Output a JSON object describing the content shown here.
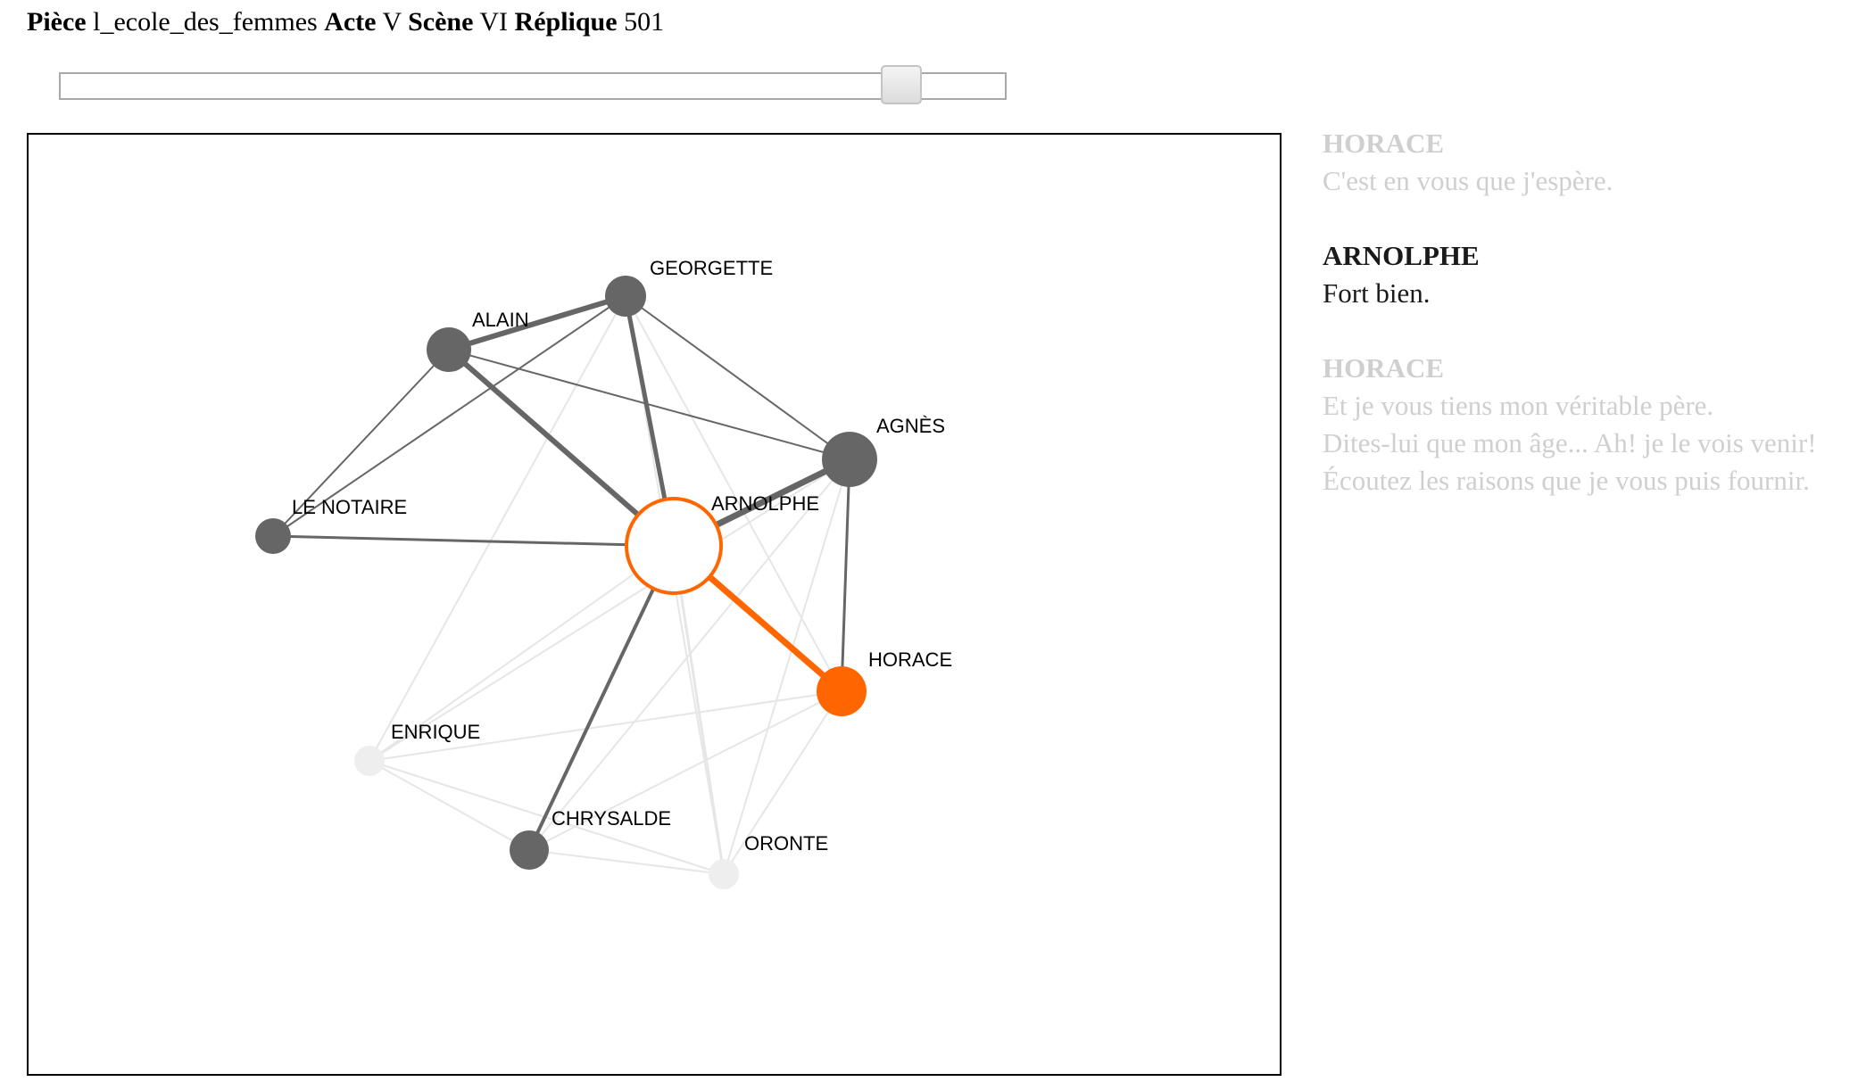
{
  "header": {
    "piece_label": "Pièce",
    "piece_value": "l_ecole_des_femmes",
    "acte_label": "Acte",
    "acte_value": "V",
    "scene_label": "Scène",
    "scene_value": "VI",
    "replique_label": "Réplique",
    "replique_value": "501"
  },
  "slider": {
    "position_fraction": 0.88
  },
  "colors": {
    "active": "#ff6600",
    "node": "#666666",
    "faded": "#eeeeee",
    "edge": "#666666",
    "faded_edge": "#e6e6e6"
  },
  "graph": {
    "nodes": [
      {
        "id": "GEORGETTE",
        "label": "GEORGETTE",
        "state": "normal"
      },
      {
        "id": "ALAIN",
        "label": "ALAIN",
        "state": "normal"
      },
      {
        "id": "AGNES",
        "label": "AGNÈS",
        "state": "normal"
      },
      {
        "id": "LE_NOTAIRE",
        "label": "LE NOTAIRE",
        "state": "normal"
      },
      {
        "id": "ARNOLPHE",
        "label": "ARNOLPHE",
        "state": "speaker"
      },
      {
        "id": "HORACE",
        "label": "HORACE",
        "state": "addressee"
      },
      {
        "id": "ENRIQUE",
        "label": "ENRIQUE",
        "state": "faded"
      },
      {
        "id": "CHRYSALDE",
        "label": "CHRYSALDE",
        "state": "normal"
      },
      {
        "id": "ORONTE",
        "label": "ORONTE",
        "state": "faded"
      }
    ],
    "edges": [
      {
        "source": "ALAIN",
        "target": "GEORGETTE",
        "state": "normal",
        "weight": 6
      },
      {
        "source": "ALAIN",
        "target": "ARNOLPHE",
        "state": "normal",
        "weight": 6
      },
      {
        "source": "GEORGETTE",
        "target": "ARNOLPHE",
        "state": "normal",
        "weight": 5
      },
      {
        "source": "AGNES",
        "target": "ARNOLPHE",
        "state": "normal",
        "weight": 7
      },
      {
        "source": "ALAIN",
        "target": "AGNES",
        "state": "normal",
        "weight": 2
      },
      {
        "source": "GEORGETTE",
        "target": "AGNES",
        "state": "normal",
        "weight": 2
      },
      {
        "source": "ALAIN",
        "target": "LE_NOTAIRE",
        "state": "normal",
        "weight": 2
      },
      {
        "source": "GEORGETTE",
        "target": "LE_NOTAIRE",
        "state": "normal",
        "weight": 2
      },
      {
        "source": "LE_NOTAIRE",
        "target": "ARNOLPHE",
        "state": "normal",
        "weight": 3
      },
      {
        "source": "AGNES",
        "target": "HORACE",
        "state": "normal",
        "weight": 3
      },
      {
        "source": "ARNOLPHE",
        "target": "CHRYSALDE",
        "state": "normal",
        "weight": 4
      },
      {
        "source": "ARNOLPHE",
        "target": "HORACE",
        "state": "active",
        "weight": 7
      },
      {
        "source": "GEORGETTE",
        "target": "ENRIQUE",
        "state": "faded",
        "weight": 2
      },
      {
        "source": "GEORGETTE",
        "target": "ORONTE",
        "state": "faded",
        "weight": 2
      },
      {
        "source": "GEORGETTE",
        "target": "HORACE",
        "state": "faded",
        "weight": 2
      },
      {
        "source": "ARNOLPHE",
        "target": "ENRIQUE",
        "state": "faded",
        "weight": 2
      },
      {
        "source": "ARNOLPHE",
        "target": "ORONTE",
        "state": "faded",
        "weight": 3
      },
      {
        "source": "AGNES",
        "target": "ENRIQUE",
        "state": "faded",
        "weight": 2
      },
      {
        "source": "AGNES",
        "target": "CHRYSALDE",
        "state": "faded",
        "weight": 2
      },
      {
        "source": "AGNES",
        "target": "ORONTE",
        "state": "faded",
        "weight": 2
      },
      {
        "source": "HORACE",
        "target": "ENRIQUE",
        "state": "faded",
        "weight": 2
      },
      {
        "source": "HORACE",
        "target": "ORONTE",
        "state": "faded",
        "weight": 2
      },
      {
        "source": "HORACE",
        "target": "CHRYSALDE",
        "state": "faded",
        "weight": 2
      },
      {
        "source": "ENRIQUE",
        "target": "CHRYSALDE",
        "state": "faded",
        "weight": 2
      },
      {
        "source": "ENRIQUE",
        "target": "ORONTE",
        "state": "faded",
        "weight": 2
      },
      {
        "source": "CHRYSALDE",
        "target": "ORONTE",
        "state": "faded",
        "weight": 2
      }
    ]
  },
  "dialogue": [
    {
      "speaker": "HORACE",
      "state": "faded",
      "lines": [
        "C'est en vous que j'espère."
      ]
    },
    {
      "speaker": "ARNOLPHE",
      "state": "active",
      "lines": [
        "Fort bien."
      ]
    },
    {
      "speaker": "HORACE",
      "state": "faded",
      "lines": [
        "Et je vous tiens mon véritable père.",
        "Dites-lui que mon âge... Ah! je le vois venir!",
        "Écoutez les raisons que je vous puis fournir."
      ]
    }
  ]
}
